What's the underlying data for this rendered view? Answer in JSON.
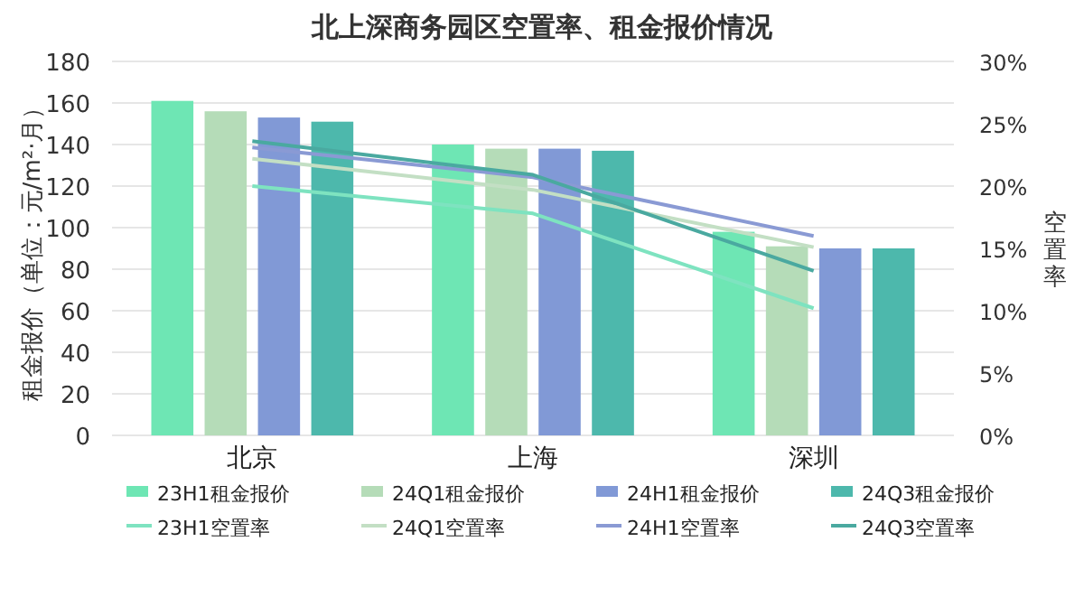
{
  "chart_data": {
    "type": "bar",
    "title": "北上深商务园区空置率、租金报价情况",
    "ylabel": "租金报价（单位：元/m²·月）",
    "y2label": "空置率",
    "categories": [
      "北京",
      "上海",
      "深圳"
    ],
    "series": [
      {
        "name": "23H1租金报价",
        "color": "#6ee6b4",
        "values": [
          161,
          140,
          98
        ]
      },
      {
        "name": "24Q1租金报价",
        "color": "#b5dcb8",
        "values": [
          156,
          138,
          91
        ]
      },
      {
        "name": "24H1租金报价",
        "color": "#8199d6",
        "values": [
          153,
          138,
          90
        ]
      },
      {
        "name": "24Q3租金报价",
        "color": "#4db8ac",
        "values": [
          151,
          137,
          90
        ]
      },
      {
        "name": "23H1空置率",
        "type": "line",
        "axis": "y2",
        "color": "#7ee3c0",
        "values": [
          20,
          17.8,
          10.2
        ]
      },
      {
        "name": "24Q1空置率",
        "type": "line",
        "axis": "y2",
        "color": "#c3dfc4",
        "values": [
          22.2,
          19.7,
          15.1
        ]
      },
      {
        "name": "24H1空置率",
        "type": "line",
        "axis": "y2",
        "color": "#8a9ad4",
        "values": [
          23.1,
          20.7,
          16
        ]
      },
      {
        "name": "24Q3空置率",
        "type": "line",
        "axis": "y2",
        "color": "#4aa9a0",
        "values": [
          23.6,
          20.9,
          13.2
        ]
      }
    ],
    "ylim": [
      0,
      180
    ],
    "yticks": [
      0,
      20,
      40,
      60,
      80,
      100,
      120,
      140,
      160,
      180
    ],
    "y2lim": [
      0,
      30
    ],
    "y2ticks": [
      {
        "value": 0,
        "label": "0%"
      },
      {
        "value": 5,
        "label": "5%"
      },
      {
        "value": 10,
        "label": "10%"
      },
      {
        "value": 15,
        "label": "15%"
      },
      {
        "value": 20,
        "label": "20%"
      },
      {
        "value": 25,
        "label": "25%"
      },
      {
        "value": 30,
        "label": "30%"
      }
    ],
    "grid": "y",
    "legend": "bottom"
  }
}
